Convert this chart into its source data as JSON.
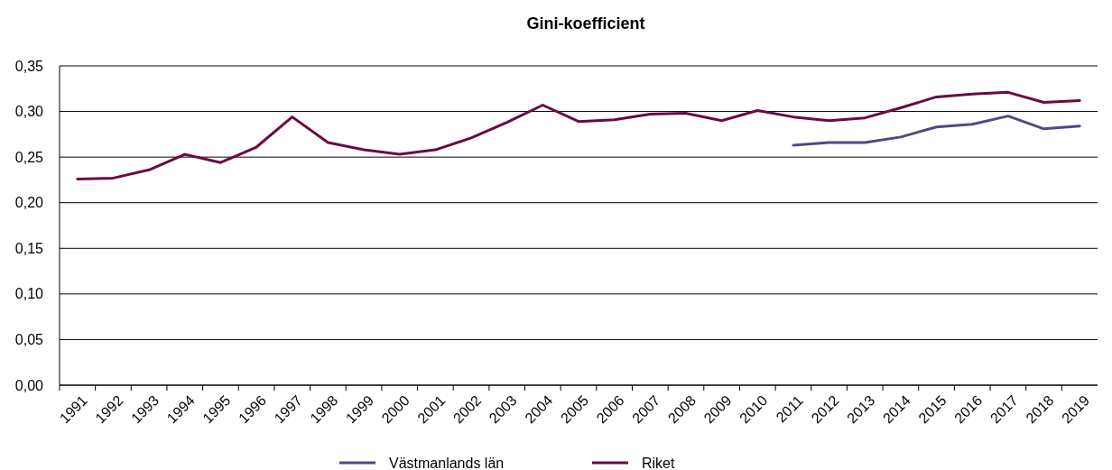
{
  "chart_data": {
    "type": "line",
    "title": "Gini-koefficient",
    "categories": [
      "1991",
      "1992",
      "1993",
      "1994",
      "1995",
      "1996",
      "1997",
      "1998",
      "1999",
      "2000",
      "2001",
      "2002",
      "2003",
      "2004",
      "2005",
      "2006",
      "2007",
      "2008",
      "2009",
      "2010",
      "2011",
      "2012",
      "2013",
      "2014",
      "2015",
      "2016",
      "2017",
      "2018",
      "2019"
    ],
    "series": [
      {
        "name": "Västmanlands län",
        "color": "#4f4a85",
        "values": [
          null,
          null,
          null,
          null,
          null,
          null,
          null,
          null,
          null,
          null,
          null,
          null,
          null,
          null,
          null,
          null,
          null,
          null,
          null,
          null,
          0.263,
          0.266,
          0.266,
          0.272,
          0.283,
          0.286,
          0.295,
          0.281,
          0.284
        ]
      },
      {
        "name": "Riket",
        "color": "#6a0a40",
        "values": [
          0.226,
          0.227,
          0.236,
          0.253,
          0.244,
          0.261,
          0.294,
          0.266,
          0.258,
          0.253,
          0.258,
          0.271,
          0.288,
          0.307,
          0.289,
          0.291,
          0.297,
          0.298,
          0.29,
          0.301,
          0.294,
          0.29,
          0.293,
          0.304,
          0.316,
          0.319,
          0.321,
          0.31,
          0.312
        ]
      }
    ],
    "ylim": [
      0,
      0.35
    ],
    "yticks": [
      {
        "value": 0,
        "label": "0,00"
      },
      {
        "value": 0.05,
        "label": "0,05"
      },
      {
        "value": 0.1,
        "label": "0,10"
      },
      {
        "value": 0.15,
        "label": "0,15"
      },
      {
        "value": 0.2,
        "label": "0,20"
      },
      {
        "value": 0.25,
        "label": "0,25"
      },
      {
        "value": 0.3,
        "label": "0,30"
      },
      {
        "value": 0.35,
        "label": "0,35"
      }
    ],
    "grid": "y",
    "legend": "bottom",
    "marker": "none",
    "line_style": "solid"
  }
}
